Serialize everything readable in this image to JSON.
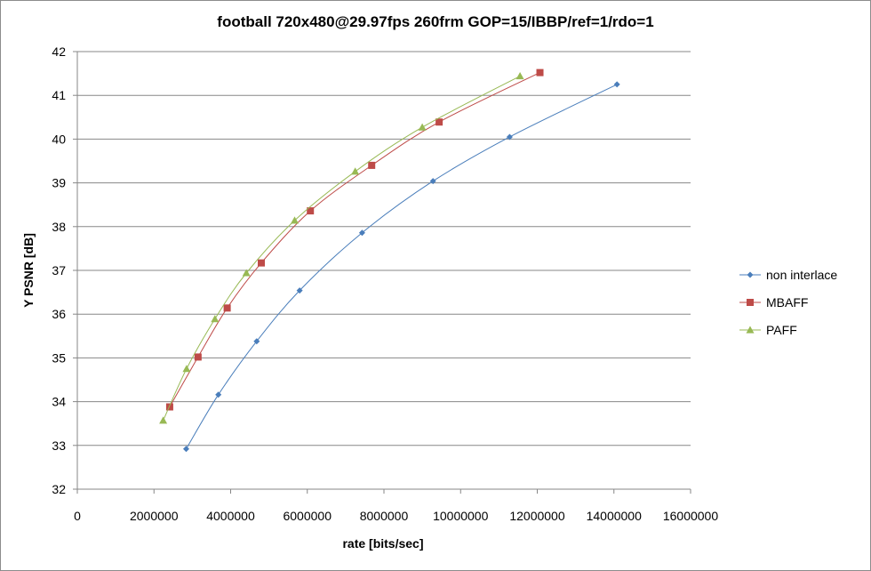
{
  "chart_data": {
    "type": "scatter",
    "title": "football 720x480@29.97fps  260frm GOP=15/IBBP/ref=1/rdo=1",
    "xlabel": "rate [bits/sec]",
    "ylabel": "Y PSNR [dB]",
    "xlim": [
      0,
      16000000
    ],
    "ylim": [
      32,
      42
    ],
    "x_ticks": [
      "0",
      "2000000",
      "4000000",
      "6000000",
      "8000000",
      "10000000",
      "12000000",
      "14000000",
      "16000000"
    ],
    "y_ticks": [
      "32",
      "33",
      "34",
      "35",
      "36",
      "37",
      "38",
      "39",
      "40",
      "41",
      "42"
    ],
    "grid": "horizontal",
    "legend_position": "right",
    "series": [
      {
        "name": "non interlace",
        "color": "#4a7ebb",
        "marker": "diamond",
        "points": [
          [
            2840000,
            32.92
          ],
          [
            3680000,
            34.16
          ],
          [
            4680000,
            35.38
          ],
          [
            5800000,
            36.54
          ],
          [
            7430000,
            37.86
          ],
          [
            9280000,
            39.04
          ],
          [
            11280000,
            40.05
          ],
          [
            14080000,
            41.25
          ]
        ]
      },
      {
        "name": "MBAFF",
        "color": "#be4b48",
        "marker": "square",
        "points": [
          [
            2410000,
            33.88
          ],
          [
            3150000,
            35.02
          ],
          [
            3910000,
            36.14
          ],
          [
            4800000,
            37.17
          ],
          [
            6080000,
            38.36
          ],
          [
            7680000,
            39.4
          ],
          [
            9440000,
            40.39
          ],
          [
            12070000,
            41.52
          ]
        ]
      },
      {
        "name": "PAFF",
        "color": "#98b954",
        "marker": "triangle",
        "points": [
          [
            2240000,
            33.57
          ],
          [
            2850000,
            34.75
          ],
          [
            3590000,
            35.89
          ],
          [
            4410000,
            36.94
          ],
          [
            5670000,
            38.14
          ],
          [
            7250000,
            39.26
          ],
          [
            9000000,
            40.27
          ],
          [
            11550000,
            41.44
          ]
        ]
      }
    ]
  }
}
